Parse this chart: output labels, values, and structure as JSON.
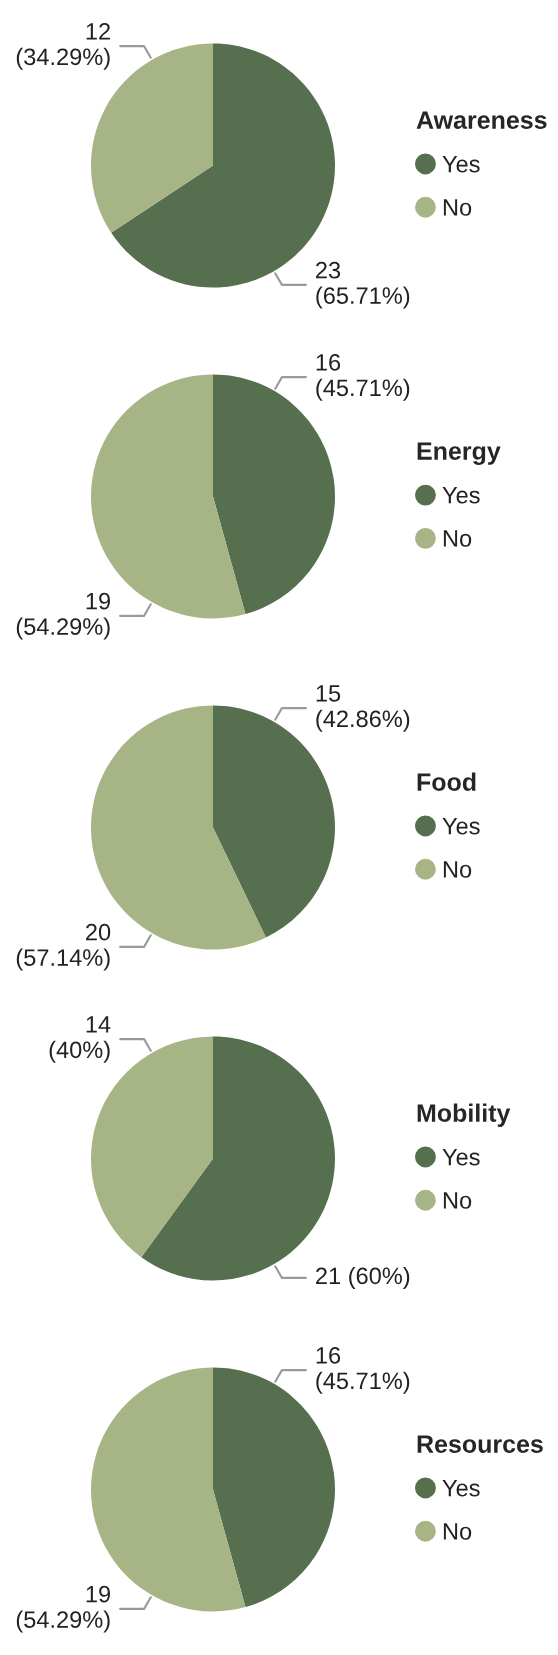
{
  "chart_data": [
    {
      "type": "pie",
      "legend_title": "Awareness",
      "categories": [
        "Yes",
        "No"
      ],
      "values": [
        23,
        12
      ],
      "colors": [
        "#566f4f",
        "#a7b486"
      ],
      "value_labels": [
        "23\n(65.71%)",
        "12\n(34.29%)"
      ],
      "legend": "right"
    },
    {
      "type": "pie",
      "legend_title": "Energy",
      "categories": [
        "Yes",
        "No"
      ],
      "values": [
        16,
        19
      ],
      "colors": [
        "#566f4f",
        "#a7b486"
      ],
      "value_labels": [
        "16\n(45.71%)",
        "19\n(54.29%)"
      ],
      "legend": "right"
    },
    {
      "type": "pie",
      "legend_title": "Food",
      "categories": [
        "Yes",
        "No"
      ],
      "values": [
        15,
        20
      ],
      "colors": [
        "#566f4f",
        "#a7b486"
      ],
      "value_labels": [
        "15\n(42.86%)",
        "20\n(57.14%)"
      ],
      "legend": "right"
    },
    {
      "type": "pie",
      "legend_title": "Mobility",
      "categories": [
        "Yes",
        "No"
      ],
      "values": [
        21,
        14
      ],
      "colors": [
        "#566f4f",
        "#a7b486"
      ],
      "value_labels": [
        "21 (60%)",
        "14\n(40%)"
      ],
      "legend": "right"
    },
    {
      "type": "pie",
      "legend_title": "Resources",
      "categories": [
        "Yes",
        "No"
      ],
      "values": [
        16,
        19
      ],
      "colors": [
        "#566f4f",
        "#a7b486"
      ],
      "value_labels": [
        "16\n(45.71%)",
        "19\n(54.29%)"
      ],
      "legend": "right"
    }
  ]
}
